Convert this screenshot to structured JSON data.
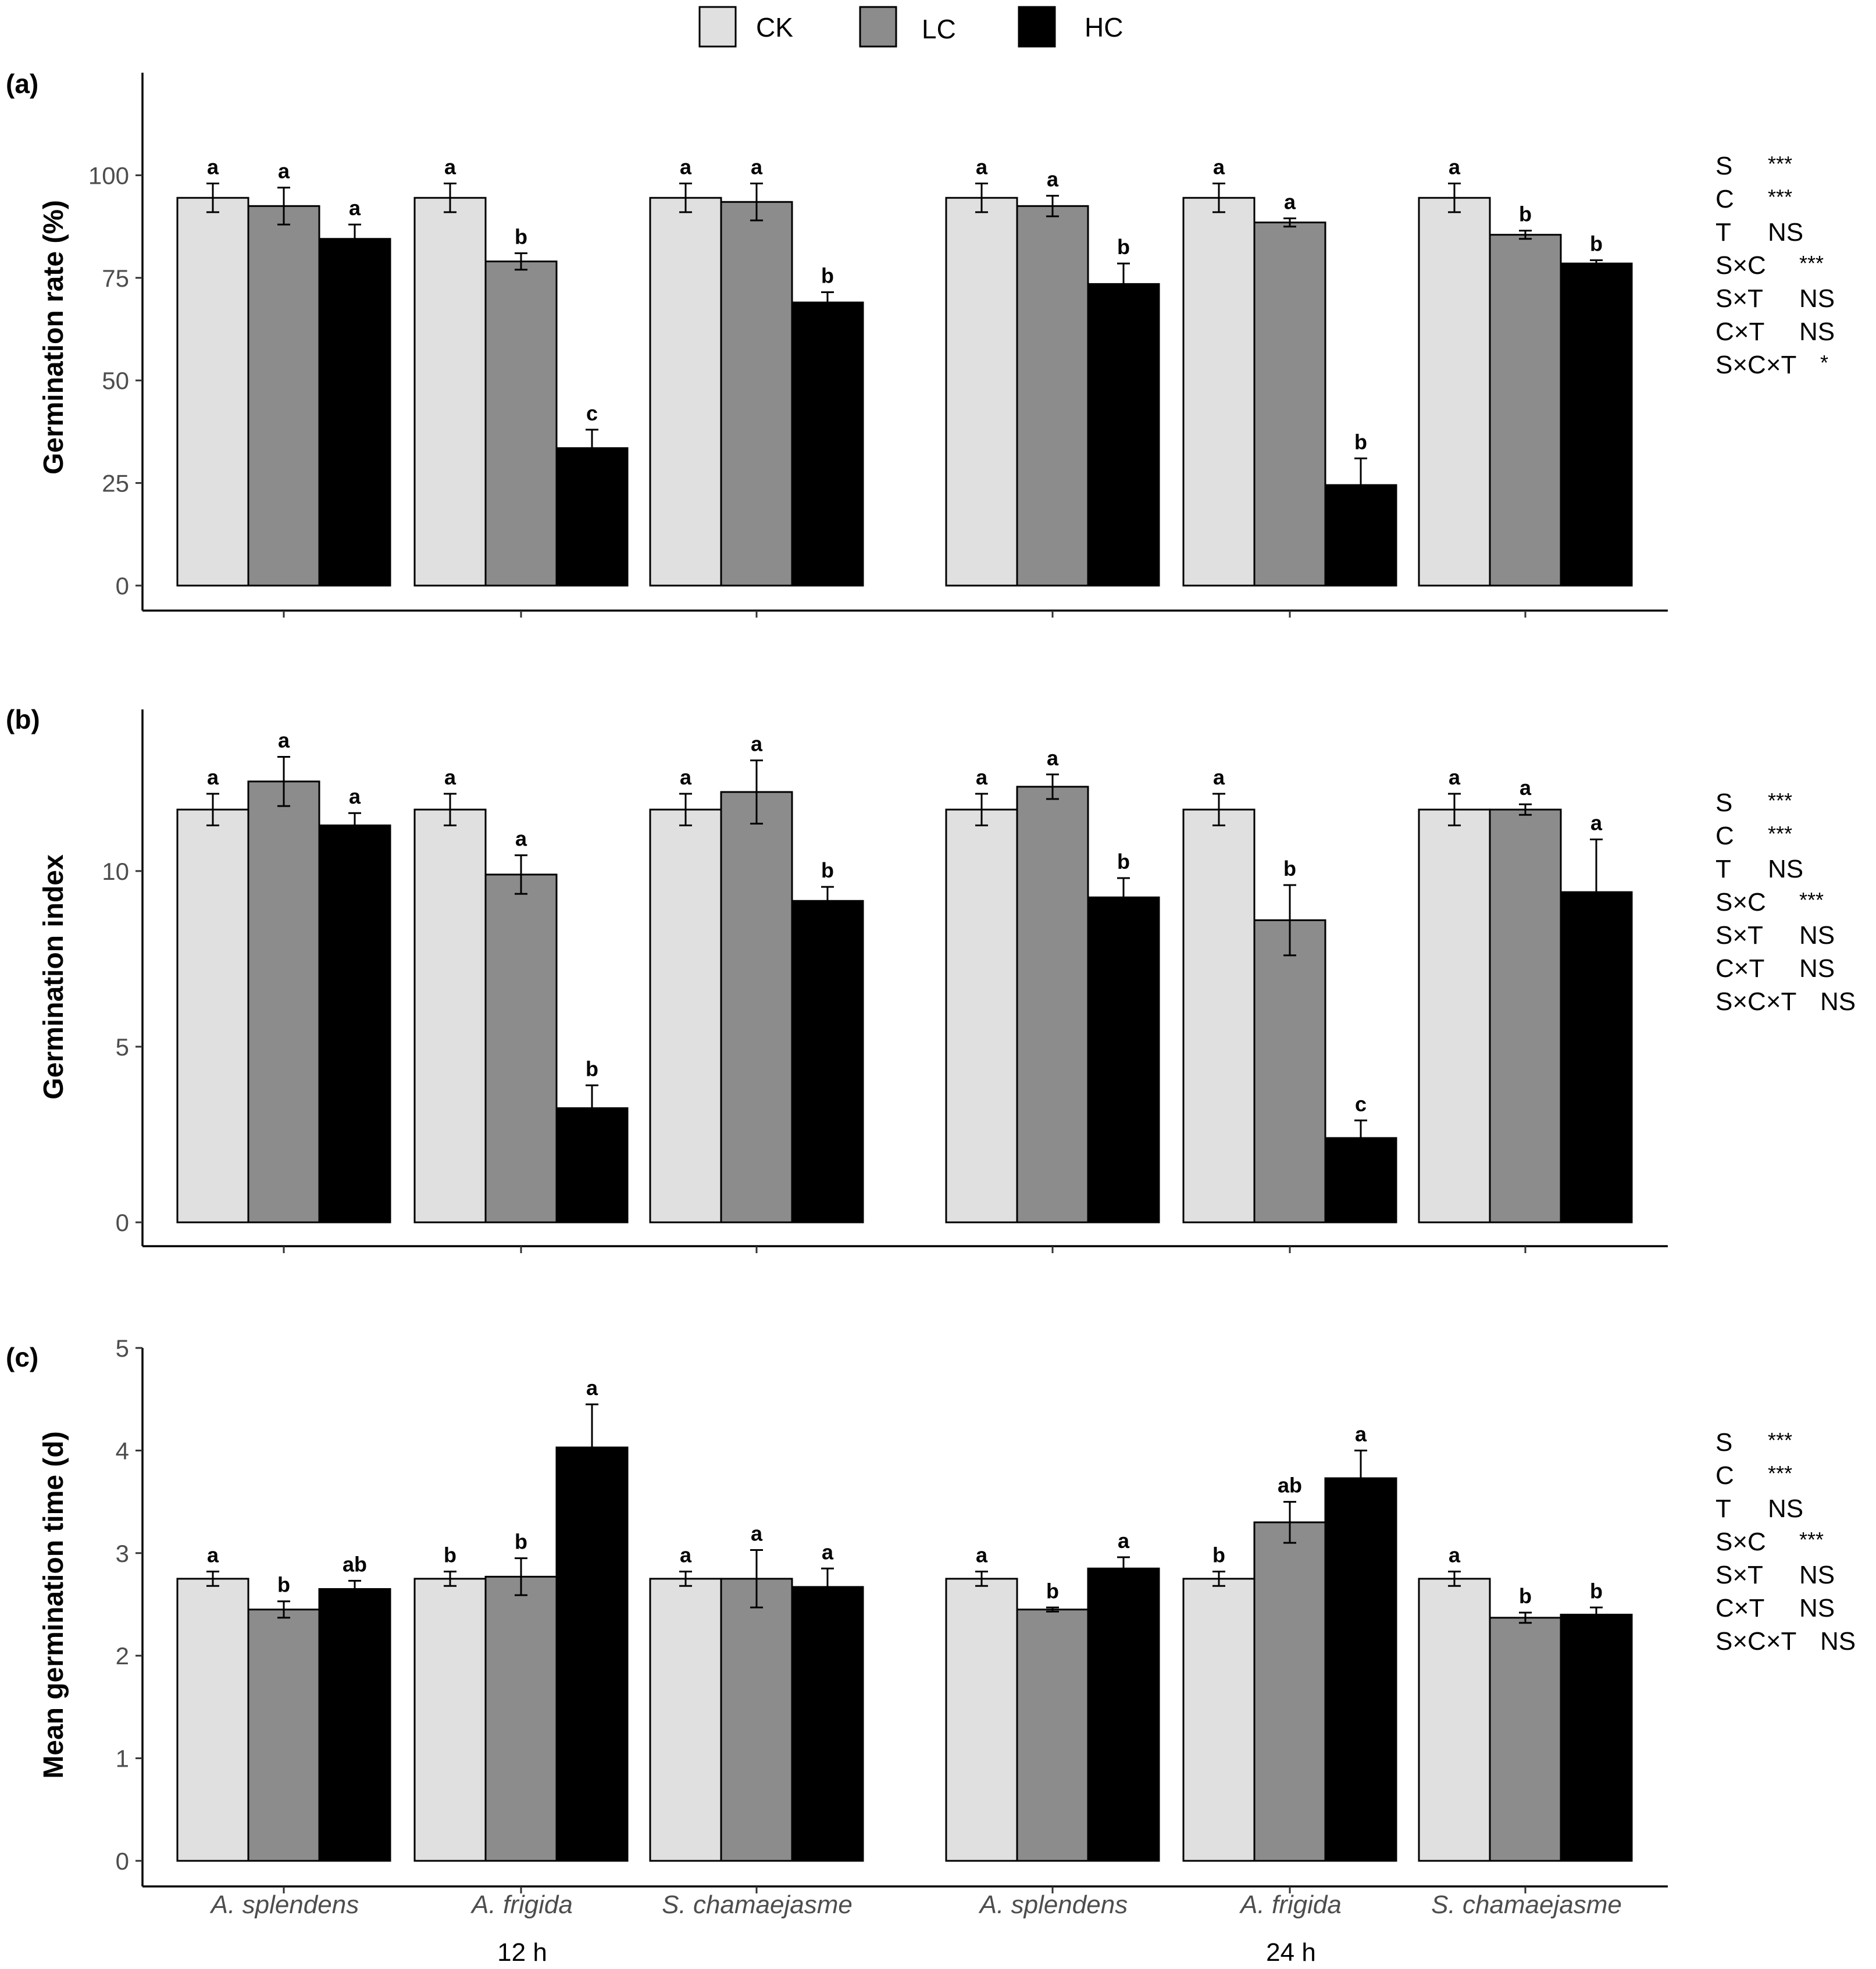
{
  "legend": [
    {
      "key": "CK",
      "label": "CK",
      "color": "#e0e0e0"
    },
    {
      "key": "LC",
      "label": "LC",
      "color": "#8c8c8c"
    },
    {
      "key": "HC",
      "label": "HC",
      "color": "#000000"
    }
  ],
  "facets": [
    "12 h",
    "24 h"
  ],
  "species": [
    "A. splendens",
    "A. frigida",
    "S. chamaejasme"
  ],
  "chart_data": [
    {
      "type": "bar",
      "tag": "(a)",
      "ylabel": "Germination rate (%)",
      "ylim": [
        0,
        125
      ],
      "yticks": [
        "0",
        "25",
        "50",
        "75",
        "100"
      ],
      "series": [
        {
          "name": "CK",
          "values_12h": [
            94.5,
            94.5,
            94.5
          ],
          "errors_12h": [
            3.5,
            3.5,
            3.5
          ],
          "letters_12h": [
            "a",
            "a",
            "a"
          ],
          "values_24h": [
            94.5,
            94.5,
            94.5
          ],
          "errors_24h": [
            3.5,
            3.5,
            3.5
          ],
          "letters_24h": [
            "a",
            "a",
            "a"
          ]
        },
        {
          "name": "LC",
          "values_12h": [
            92.5,
            79,
            93.5
          ],
          "errors_12h": [
            4.5,
            2,
            4.5
          ],
          "letters_12h": [
            "a",
            "b",
            "a"
          ],
          "values_24h": [
            92.5,
            88.5,
            85.5
          ],
          "errors_24h": [
            2.5,
            1,
            1
          ],
          "letters_24h": [
            "a",
            "a",
            "b"
          ]
        },
        {
          "name": "HC",
          "values_12h": [
            84.5,
            33.5,
            69
          ],
          "errors_12h": [
            3.5,
            4.5,
            2.5
          ],
          "letters_12h": [
            "a",
            "c",
            "b"
          ],
          "values_24h": [
            73.5,
            24.5,
            78.5
          ],
          "errors_24h": [
            5,
            6.5,
            0.8
          ],
          "letters_24h": [
            "b",
            "b",
            "b"
          ]
        }
      ],
      "anova": [
        [
          "S",
          "***"
        ],
        [
          "C",
          "***"
        ],
        [
          "T",
          "NS"
        ],
        [
          "S×C",
          "***"
        ],
        [
          "S×T",
          "NS"
        ],
        [
          "C×T",
          "NS"
        ],
        [
          "S×C×T",
          "*"
        ]
      ]
    },
    {
      "type": "bar",
      "tag": "(b)",
      "ylabel": "Germination index",
      "ylim": [
        0,
        14.6
      ],
      "yticks": [
        "0",
        "5",
        "10"
      ],
      "series": [
        {
          "name": "CK",
          "values_12h": [
            11.75,
            11.75,
            11.75
          ],
          "errors_12h": [
            0.45,
            0.45,
            0.45
          ],
          "letters_12h": [
            "a",
            "a",
            "a"
          ],
          "values_24h": [
            11.75,
            11.75,
            11.75
          ],
          "errors_24h": [
            0.45,
            0.45,
            0.45
          ],
          "letters_24h": [
            "a",
            "a",
            "a"
          ]
        },
        {
          "name": "LC",
          "values_12h": [
            12.55,
            9.9,
            12.25
          ],
          "errors_12h": [
            0.7,
            0.55,
            0.9
          ],
          "letters_12h": [
            "a",
            "a",
            "a"
          ],
          "values_24h": [
            12.4,
            8.6,
            11.75
          ],
          "errors_24h": [
            0.35,
            1.0,
            0.15
          ],
          "letters_24h": [
            "a",
            "b",
            "a"
          ]
        },
        {
          "name": "HC",
          "values_12h": [
            11.3,
            3.25,
            9.15
          ],
          "errors_12h": [
            0.35,
            0.65,
            0.4
          ],
          "letters_12h": [
            "a",
            "b",
            "b"
          ],
          "values_24h": [
            9.25,
            2.4,
            9.4
          ],
          "errors_24h": [
            0.55,
            0.5,
            1.5
          ],
          "letters_24h": [
            "b",
            "c",
            "a"
          ]
        }
      ],
      "anova": [
        [
          "S",
          "***"
        ],
        [
          "C",
          "***"
        ],
        [
          "T",
          "NS"
        ],
        [
          "S×C",
          "***"
        ],
        [
          "S×T",
          "NS"
        ],
        [
          "C×T",
          "NS"
        ],
        [
          "S×C×T",
          "NS"
        ]
      ]
    },
    {
      "type": "bar",
      "tag": "(c)",
      "ylabel": "Mean germination time (d)",
      "ylim": [
        0,
        5
      ],
      "yticks": [
        "0",
        "1",
        "2",
        "3",
        "4",
        "5"
      ],
      "series": [
        {
          "name": "CK",
          "values_12h": [
            2.75,
            2.75,
            2.75
          ],
          "errors_12h": [
            0.07,
            0.07,
            0.07
          ],
          "letters_12h": [
            "a",
            "b",
            "a"
          ],
          "values_24h": [
            2.75,
            2.75,
            2.75
          ],
          "errors_24h": [
            0.07,
            0.07,
            0.07
          ],
          "letters_24h": [
            "a",
            "b",
            "a"
          ]
        },
        {
          "name": "LC",
          "values_12h": [
            2.45,
            2.77,
            2.75
          ],
          "errors_12h": [
            0.08,
            0.18,
            0.28
          ],
          "letters_12h": [
            "b",
            "b",
            "a"
          ],
          "values_24h": [
            2.45,
            3.3,
            2.37
          ],
          "errors_24h": [
            0.02,
            0.2,
            0.05
          ],
          "letters_24h": [
            "b",
            "ab",
            "b"
          ]
        },
        {
          "name": "HC",
          "values_12h": [
            2.65,
            4.03,
            2.67
          ],
          "errors_12h": [
            0.08,
            0.42,
            0.18
          ],
          "letters_12h": [
            "ab",
            "a",
            "a"
          ],
          "values_24h": [
            2.85,
            3.73,
            2.4
          ],
          "errors_24h": [
            0.11,
            0.27,
            0.07
          ],
          "letters_24h": [
            "a",
            "a",
            "b"
          ]
        }
      ],
      "anova": [
        [
          "S",
          "***"
        ],
        [
          "C",
          "***"
        ],
        [
          "T",
          "NS"
        ],
        [
          "S×C",
          "***"
        ],
        [
          "S×T",
          "NS"
        ],
        [
          "C×T",
          "NS"
        ],
        [
          "S×C×T",
          "NS"
        ]
      ]
    }
  ]
}
